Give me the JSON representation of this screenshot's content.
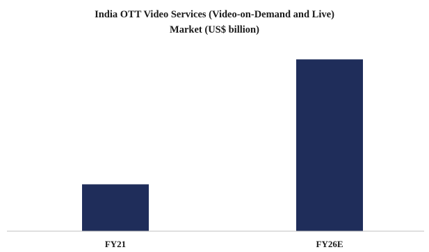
{
  "chart_data": {
    "type": "bar",
    "title": "India OTT Video Services (Video-on-Demand and Live)",
    "subtitle": "Market (US$ billion)",
    "categories": [
      "FY21",
      "FY26E"
    ],
    "values": [
      1.5,
      5.5
    ],
    "xlabel": "",
    "ylabel": "",
    "ylim": [
      0,
      6.4
    ],
    "grid": false,
    "legend": "none",
    "bar_color": "#1f2d5a",
    "axis_color": "#bfbfbf"
  }
}
